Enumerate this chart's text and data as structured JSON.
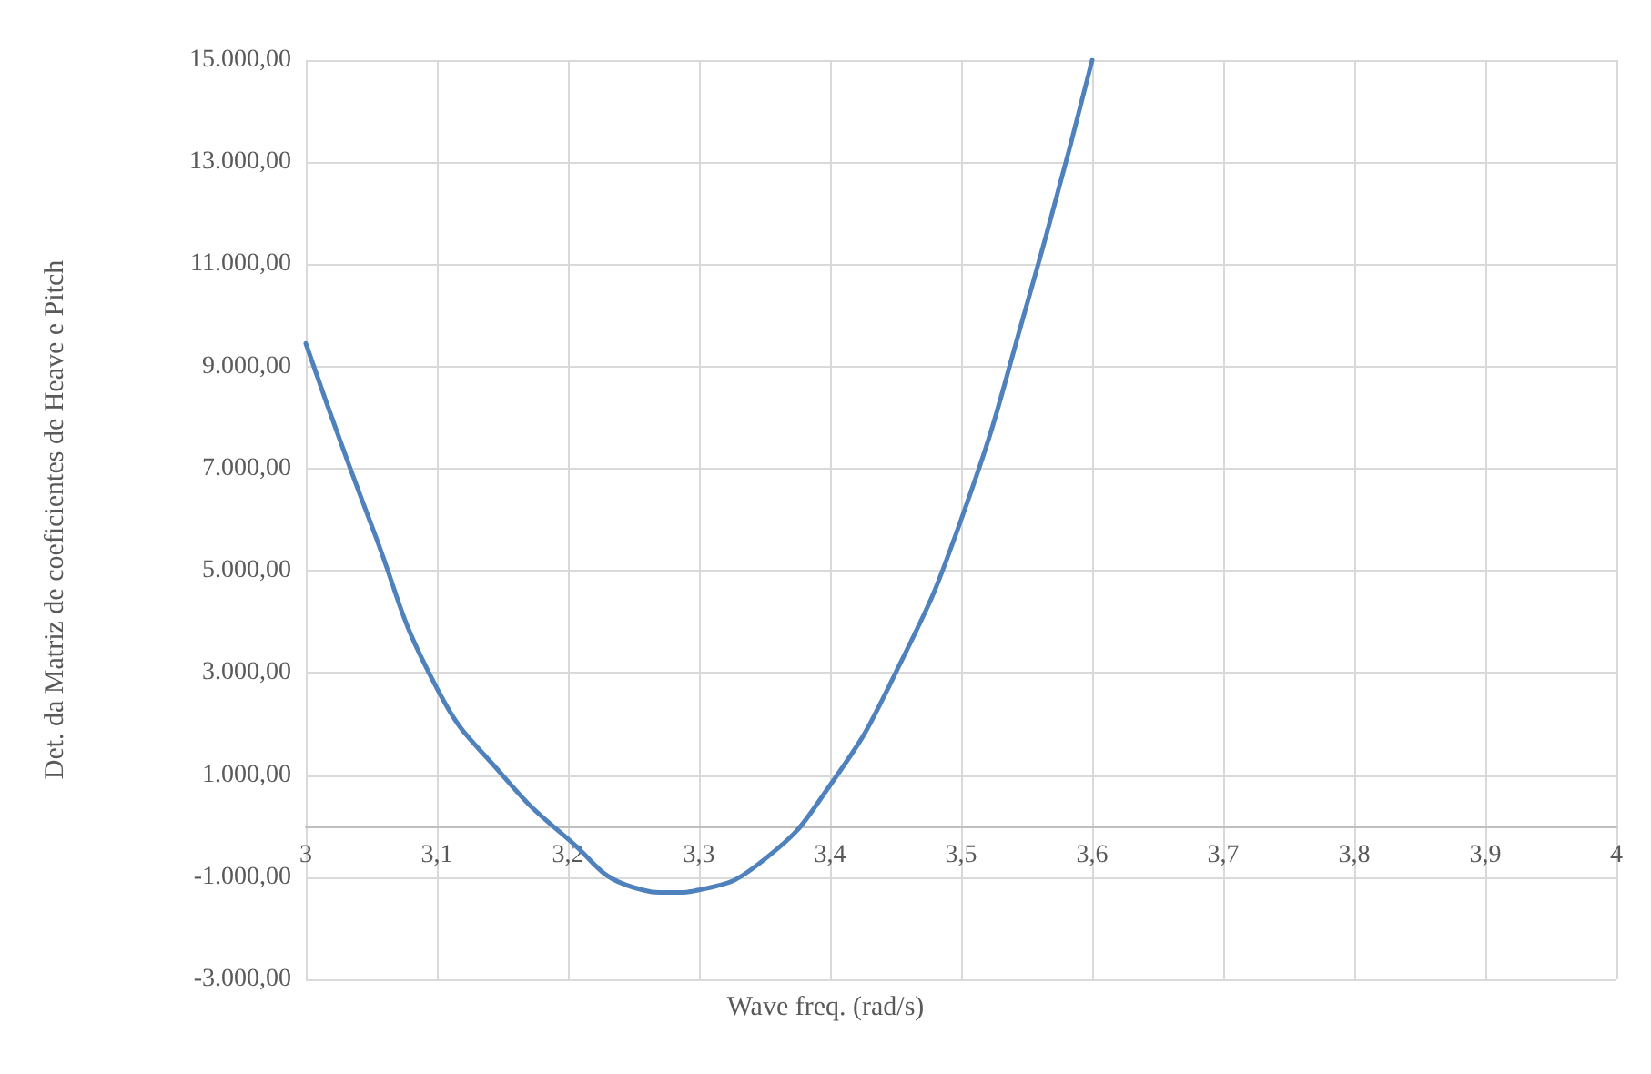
{
  "chart_data": {
    "type": "line",
    "xlabel": "Wave freq. (rad/s)",
    "ylabel": "Det. da Matriz de coeficientes de Heave e Pitch",
    "x": [
      3.0,
      3.05,
      3.1,
      3.15,
      3.2,
      3.25,
      3.28,
      3.3,
      3.35,
      3.4,
      3.45,
      3.5,
      3.55,
      3.6
    ],
    "series": [
      {
        "color": "#4f81bd",
        "values": [
          9450,
          5900,
          2700,
          1000,
          -250,
          -1200,
          -1300,
          -1250,
          -650,
          800,
          3000,
          6000,
          10200,
          15000
        ]
      }
    ],
    "xlim": [
      3,
      4
    ],
    "ylim": [
      -3000,
      15000
    ],
    "xticks": [
      {
        "value": 3,
        "label": "3"
      },
      {
        "value": 3.1,
        "label": "3,1"
      },
      {
        "value": 3.2,
        "label": "3,2"
      },
      {
        "value": 3.3,
        "label": "3,3"
      },
      {
        "value": 3.4,
        "label": "3,4"
      },
      {
        "value": 3.5,
        "label": "3,5"
      },
      {
        "value": 3.6,
        "label": "3,6"
      },
      {
        "value": 3.7,
        "label": "3,7"
      },
      {
        "value": 3.8,
        "label": "3,8"
      },
      {
        "value": 3.9,
        "label": "3,9"
      },
      {
        "value": 4,
        "label": "4"
      }
    ],
    "yticks": [
      {
        "value": -3000,
        "label": "-3.000,00"
      },
      {
        "value": -1000,
        "label": "-1.000,00"
      },
      {
        "value": 1000,
        "label": "1.000,00"
      },
      {
        "value": 3000,
        "label": "3.000,00"
      },
      {
        "value": 5000,
        "label": "5.000,00"
      },
      {
        "value": 7000,
        "label": "7.000,00"
      },
      {
        "value": 9000,
        "label": "9.000,00"
      },
      {
        "value": 11000,
        "label": "11.000,00"
      },
      {
        "value": 13000,
        "label": "13.000,00"
      },
      {
        "value": 15000,
        "label": "15.000,00"
      }
    ],
    "grid": true,
    "marker": "none",
    "line_style": "solid"
  }
}
